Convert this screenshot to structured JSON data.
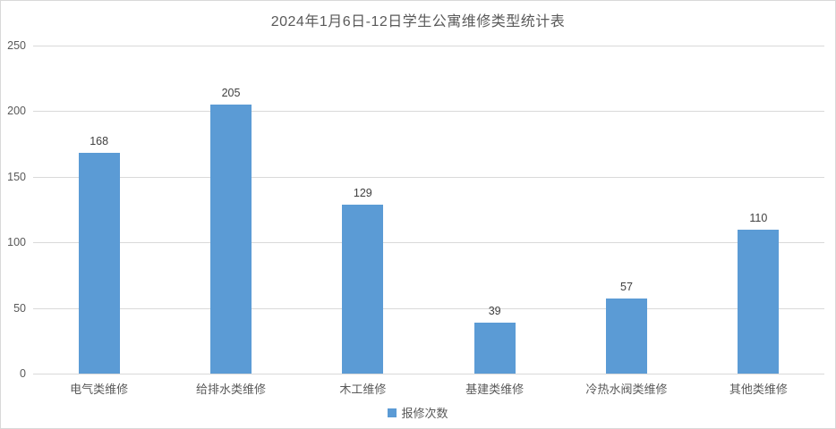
{
  "title": "2024年1月6日-12日学生公寓维修类型统计表",
  "legend": {
    "label": "报修次数",
    "marker_color": "#5B9BD5"
  },
  "colors": {
    "bar": "#5B9BD5",
    "grid": "#D9D9D9",
    "axis_text": "#595959",
    "value_label": "#404040",
    "frame_border": "#D9D9D9",
    "background": "#FFFFFF"
  },
  "chart_data": {
    "type": "bar",
    "title": "2024年1月6日-12日学生公寓维修类型统计表",
    "categories": [
      "电气类维修",
      "给排水类维修",
      "木工维修",
      "基建类维修",
      "冷热水阀类维修",
      "其他类维修"
    ],
    "series": [
      {
        "name": "报修次数",
        "color": "#5B9BD5",
        "values": [
          168,
          205,
          129,
          39,
          57,
          110
        ]
      }
    ],
    "xlabel": "",
    "ylabel": "",
    "ylim": [
      0,
      250
    ],
    "yticks": [
      0,
      50,
      100,
      150,
      200,
      250
    ],
    "grid": true,
    "data_labels": true,
    "legend_position": "bottom"
  }
}
